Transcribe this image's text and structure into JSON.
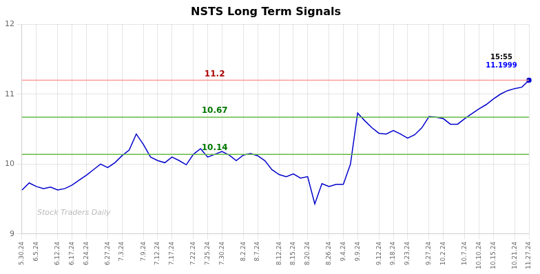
{
  "chart_data": {
    "type": "line",
    "title": "NSTS Long Term Signals",
    "categories": [
      "5.30.24",
      null,
      "6.5.24",
      null,
      null,
      "6.12.24",
      null,
      "6.17.24",
      null,
      "6.24.24",
      null,
      null,
      "6.27.24",
      null,
      "7.3.24",
      null,
      null,
      "7.9.24",
      null,
      "7.12.24",
      null,
      "7.17.24",
      null,
      null,
      "7.22.24",
      null,
      "7.25.24",
      null,
      "7.30.24",
      null,
      null,
      "8.2.24",
      null,
      "8.7.24",
      null,
      null,
      "8.12.24",
      null,
      "8.15.24",
      null,
      "8.20.24",
      null,
      null,
      "8.26.24",
      null,
      "9.4.24",
      null,
      "9.9.24",
      null,
      null,
      "9.12.24",
      null,
      "9.18.24",
      null,
      "9.23.24",
      null,
      null,
      "9.27.24",
      null,
      "10.2.24",
      null,
      null,
      "10.7.24",
      null,
      "10.10.24",
      null,
      "10.15.24",
      null,
      null,
      "10.21.24",
      null,
      "11.27.24"
    ],
    "values": [
      9.63,
      9.73,
      9.68,
      9.65,
      9.67,
      9.63,
      9.65,
      9.7,
      9.77,
      9.84,
      9.92,
      10.0,
      9.95,
      10.02,
      10.12,
      10.2,
      10.43,
      10.28,
      10.1,
      10.05,
      10.02,
      10.1,
      10.05,
      9.99,
      10.14,
      10.22,
      10.1,
      10.14,
      10.18,
      10.13,
      10.05,
      10.13,
      10.15,
      10.12,
      10.05,
      9.92,
      9.85,
      9.82,
      9.86,
      9.8,
      9.82,
      9.43,
      9.72,
      9.68,
      9.71,
      9.71,
      10.0,
      10.73,
      10.62,
      10.52,
      10.44,
      10.43,
      10.48,
      10.43,
      10.37,
      10.42,
      10.52,
      10.68,
      10.67,
      10.65,
      10.57,
      10.57,
      10.65,
      10.72,
      10.79,
      10.85,
      10.93,
      11.0,
      11.05,
      11.08,
      11.1,
      11.2
    ],
    "color": "#0000cc",
    "ylim": [
      9,
      12
    ],
    "yticks": [
      9,
      10,
      11,
      12
    ],
    "grid": true,
    "reference_lines": [
      {
        "value": 11.2,
        "label": "11.2",
        "color": "#ff9999",
        "label_color": "#aa0000"
      },
      {
        "value": 10.67,
        "label": "10.67",
        "color": "#66bb44",
        "label_color": "#007700"
      },
      {
        "value": 10.14,
        "label": "10.14",
        "color": "#66bb44",
        "label_color": "#007700"
      }
    ],
    "annotations": [
      {
        "text": "15:55",
        "color": "#000000"
      },
      {
        "text": "11.1999",
        "color": "#0000ff"
      }
    ],
    "watermark": "Stock Traders Daily"
  }
}
